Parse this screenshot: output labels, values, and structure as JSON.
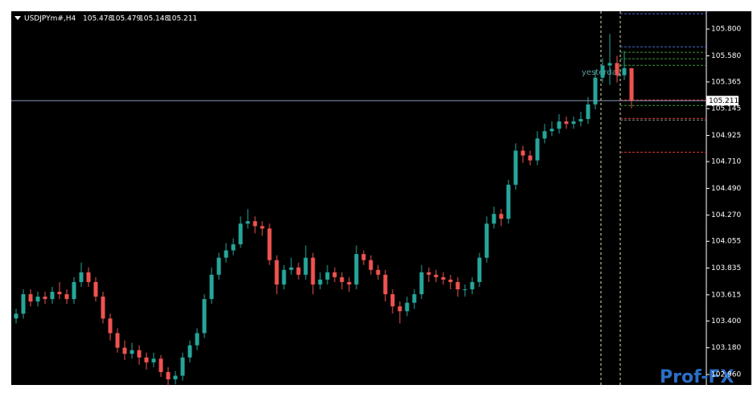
{
  "chart_data": {
    "type": "candlestick",
    "symbol": "USDJPYm#,H4",
    "ylim": [
      102.874,
      105.946
    ],
    "yticks": [
      {
        "value": 105.8,
        "label": "105.800"
      },
      {
        "value": 105.58,
        "label": "105.580"
      },
      105.365,
      105.145,
      104.925,
      {
        "value": 104.71,
        "label": "104.710"
      },
      {
        "value": 104.49,
        "label": "104.490"
      },
      {
        "value": 104.27,
        "label": "104.270"
      },
      104.055,
      103.835,
      103.615,
      {
        "value": 103.4,
        "label": "103.400"
      },
      {
        "value": 103.18,
        "label": "103.180"
      },
      {
        "value": 102.96,
        "label": "102.960"
      }
    ],
    "up_color": "#26a69a",
    "down_color": "#ef5350",
    "open": [
      103.42,
      103.46,
      103.62,
      103.56,
      103.6,
      103.58,
      103.64,
      103.62,
      103.58,
      103.72,
      103.8,
      103.72,
      103.6,
      103.42,
      103.3,
      103.18,
      103.13,
      103.16,
      103.1,
      103.06,
      103.09,
      102.98,
      102.92,
      102.95,
      103.1,
      103.2,
      103.3,
      103.58,
      103.78,
      103.92,
      103.98,
      104.03,
      104.2,
      104.22,
      104.18,
      104.16,
      103.9,
      103.7,
      103.82,
      103.84,
      103.78,
      103.92,
      103.7,
      103.74,
      103.8,
      103.76,
      103.72,
      103.7,
      103.95,
      103.9,
      103.82,
      103.78,
      103.62,
      103.52,
      103.48,
      103.55,
      103.62,
      103.8,
      103.78,
      103.76,
      103.74,
      103.72,
      103.66,
      103.66,
      103.72,
      103.92,
      104.2,
      104.28,
      104.24,
      104.52,
      104.8,
      104.76,
      104.72,
      104.9,
      104.96,
      104.98,
      105.04,
      105.02,
      105.04,
      105.06,
      105.18,
      105.4,
      105.5,
      105.52,
      105.42,
      105.478
    ],
    "high": [
      103.5,
      103.66,
      103.66,
      103.64,
      103.64,
      103.68,
      103.72,
      103.66,
      103.76,
      103.88,
      103.84,
      103.76,
      103.64,
      103.46,
      103.34,
      103.24,
      103.22,
      103.2,
      103.14,
      103.14,
      103.12,
      103.02,
      102.99,
      103.14,
      103.24,
      103.34,
      103.62,
      103.84,
      103.96,
      104.04,
      104.08,
      104.26,
      104.32,
      104.26,
      104.22,
      104.2,
      103.94,
      103.86,
      103.92,
      103.88,
      104.02,
      103.96,
      103.8,
      103.86,
      103.84,
      103.8,
      103.76,
      104.02,
      103.98,
      103.94,
      103.86,
      103.82,
      103.66,
      103.56,
      103.6,
      103.66,
      103.86,
      103.84,
      103.82,
      103.8,
      103.78,
      103.76,
      103.7,
      103.76,
      103.96,
      104.26,
      104.34,
      104.32,
      104.56,
      104.86,
      104.84,
      104.8,
      104.96,
      105.02,
      105.04,
      105.1,
      105.08,
      105.08,
      105.12,
      105.24,
      105.46,
      105.56,
      105.76,
      105.58,
      105.62,
      105.479
    ],
    "low": [
      103.38,
      103.42,
      103.52,
      103.52,
      103.54,
      103.54,
      103.58,
      103.54,
      103.54,
      103.68,
      103.68,
      103.56,
      103.38,
      103.24,
      103.14,
      103.08,
      103.09,
      103.04,
      103.0,
      103.02,
      102.94,
      102.87,
      102.88,
      102.91,
      103.06,
      103.16,
      103.26,
      103.54,
      103.74,
      103.88,
      103.94,
      104.0,
      104.16,
      104.12,
      104.1,
      103.86,
      103.62,
      103.66,
      103.78,
      103.74,
      103.74,
      103.62,
      103.66,
      103.7,
      103.72,
      103.66,
      103.64,
      103.66,
      103.86,
      103.78,
      103.74,
      103.56,
      103.46,
      103.38,
      103.44,
      103.5,
      103.58,
      103.72,
      103.72,
      103.7,
      103.66,
      103.6,
      103.6,
      103.62,
      103.68,
      103.88,
      104.16,
      104.18,
      104.2,
      104.48,
      104.7,
      104.68,
      104.68,
      104.86,
      104.92,
      104.94,
      104.98,
      104.98,
      105.0,
      105.02,
      105.14,
      105.36,
      105.34,
      105.36,
      105.38,
      105.148
    ],
    "close": [
      103.46,
      103.62,
      103.56,
      103.6,
      103.58,
      103.64,
      103.62,
      103.58,
      103.72,
      103.8,
      103.72,
      103.6,
      103.42,
      103.3,
      103.18,
      103.13,
      103.16,
      103.1,
      103.06,
      103.09,
      102.98,
      102.92,
      102.95,
      103.1,
      103.2,
      103.3,
      103.58,
      103.78,
      103.92,
      103.98,
      104.03,
      104.2,
      104.22,
      104.18,
      104.16,
      103.9,
      103.7,
      103.82,
      103.84,
      103.78,
      103.92,
      103.7,
      103.74,
      103.8,
      103.76,
      103.72,
      103.7,
      103.95,
      103.9,
      103.82,
      103.78,
      103.62,
      103.52,
      103.48,
      103.55,
      103.62,
      103.8,
      103.78,
      103.76,
      103.74,
      103.72,
      103.66,
      103.66,
      103.72,
      103.92,
      104.2,
      104.28,
      104.24,
      104.52,
      104.8,
      104.76,
      104.72,
      104.9,
      104.96,
      104.98,
      105.04,
      105.02,
      105.04,
      105.06,
      105.18,
      105.4,
      105.5,
      105.52,
      105.42,
      105.478,
      105.211
    ],
    "levels": [
      {
        "value": 105.926,
        "color": "#4a6fd8"
      },
      {
        "value": 105.654,
        "color": "#4a6fd8"
      },
      {
        "value": 105.608,
        "color": "#3a9a3a"
      },
      {
        "value": 105.555,
        "color": "#3a9a3a"
      },
      {
        "value": 105.502,
        "color": "#3a9a3a"
      },
      {
        "value": 105.217,
        "color": "#d83a3a"
      },
      {
        "value": 105.171,
        "color": "#3a9a3a"
      },
      {
        "value": 105.065,
        "color": "#d83a3a"
      },
      {
        "value": 105.052,
        "color": "#888888"
      },
      {
        "value": 104.787,
        "color": "#d83a3a"
      }
    ],
    "annotation": "yesterday",
    "watermark": "Prof-FX"
  }
}
